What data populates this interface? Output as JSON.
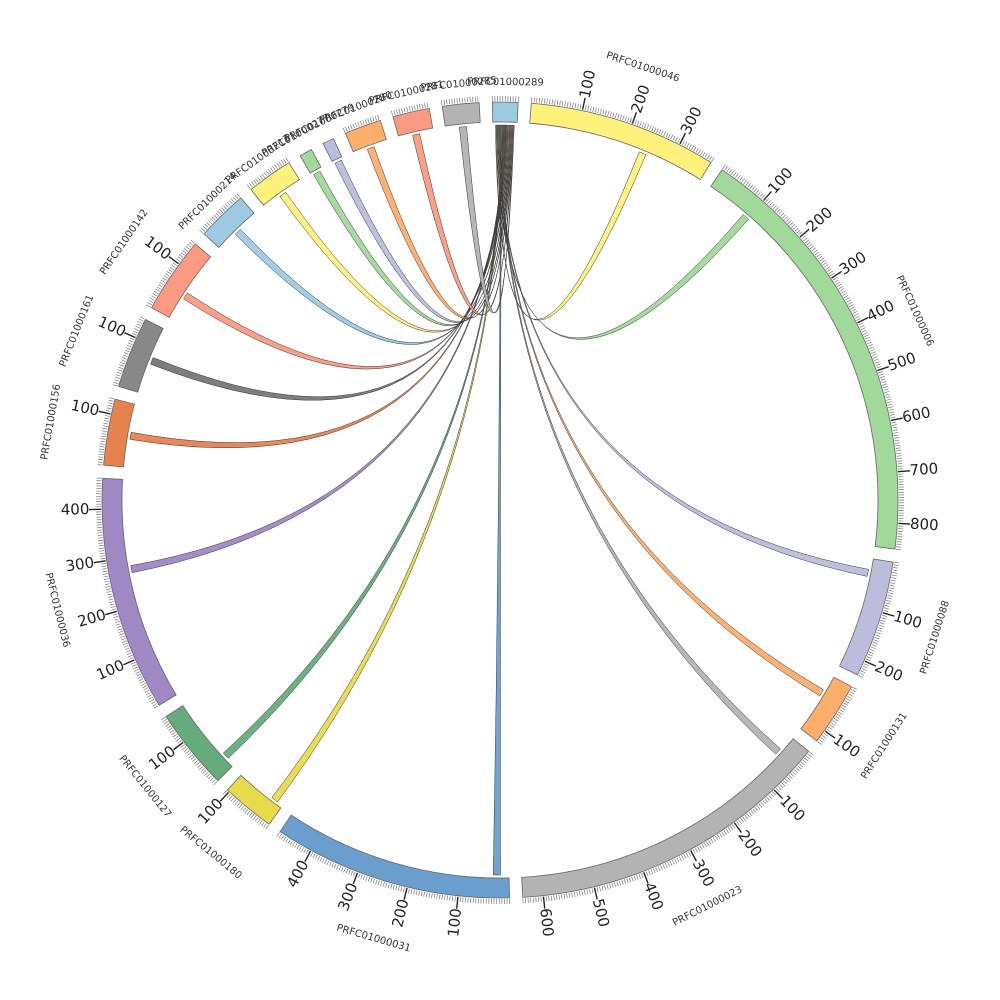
{
  "diagram": {
    "type": "circos",
    "hub": "PRFC01000289",
    "segments": [
      {
        "name": "PRFC01000289",
        "length": 50,
        "color": "#9ecae1",
        "ticks": []
      },
      {
        "name": "PRFC01000046",
        "length": 370,
        "color": "#fff27c",
        "ticks": [
          100,
          200,
          300
        ]
      },
      {
        "name": "PRFC01000006",
        "length": 850,
        "color": "#a1d99b",
        "ticks": [
          100,
          200,
          300,
          400,
          500,
          600,
          700,
          800
        ]
      },
      {
        "name": "PRFC01000088",
        "length": 230,
        "color": "#bcbddc",
        "ticks": [
          100,
          200
        ]
      },
      {
        "name": "PRFC01000131",
        "length": 125,
        "color": "#fdae6b",
        "ticks": [
          100
        ]
      },
      {
        "name": "PRFC01000023",
        "length": 640,
        "color": "#b3b3b3",
        "ticks": [
          100,
          200,
          300,
          400,
          500,
          600
        ]
      },
      {
        "name": "PRFC01000031",
        "length": 470,
        "color": "#6a9ecf",
        "ticks": [
          100,
          200,
          300,
          400
        ]
      },
      {
        "name": "PRFC01000180",
        "length": 105,
        "color": "#e7db4c",
        "ticks": [
          100
        ]
      },
      {
        "name": "PRFC01000127",
        "length": 160,
        "color": "#66ab7c",
        "ticks": [
          100
        ]
      },
      {
        "name": "PRFC01000036",
        "length": 460,
        "color": "#9f88c4",
        "ticks": [
          100,
          200,
          300,
          400
        ]
      },
      {
        "name": "PRFC01000156",
        "length": 130,
        "color": "#e6824e",
        "ticks": [
          100
        ]
      },
      {
        "name": "PRFC01000161",
        "length": 140,
        "color": "#888888",
        "ticks": [
          100
        ]
      },
      {
        "name": "PRFC01000142",
        "length": 150,
        "color": "#fb9a82",
        "ticks": [
          100
        ]
      },
      {
        "name": "PRFC01000214",
        "length": 100,
        "color": "#9ecae1",
        "ticks": []
      },
      {
        "name": "PRFC01000213",
        "length": 90,
        "color": "#fff27c",
        "ticks": []
      },
      {
        "name": "PRFC01000277",
        "length": 25,
        "color": "#a1d99b",
        "ticks": []
      },
      {
        "name": "PRFC01000279",
        "length": 22,
        "color": "#bcbddc",
        "ticks": []
      },
      {
        "name": "PRFC01000280",
        "length": 72,
        "color": "#fdae6b",
        "ticks": []
      },
      {
        "name": "PRFC01000281",
        "length": 72,
        "color": "#fb9a82",
        "ticks": []
      },
      {
        "name": "PRFC01000285",
        "length": 72,
        "color": "#b3b3b3",
        "ticks": []
      }
    ],
    "links": [
      {
        "target": "PRFC01000046",
        "pos": 240,
        "color": "#fff27c"
      },
      {
        "target": "PRFC01000006",
        "pos": 95,
        "color": "#a1d99b"
      },
      {
        "target": "PRFC01000088",
        "pos": 30,
        "color": "#bcbddc"
      },
      {
        "target": "PRFC01000131",
        "pos": 40,
        "color": "#fdae6b"
      },
      {
        "target": "PRFC01000023",
        "pos": 40,
        "color": "#b3b3b3"
      },
      {
        "target": "PRFC01000031",
        "pos": 25,
        "color": "#6a9ecf"
      },
      {
        "target": "PRFC01000180",
        "pos": 20,
        "color": "#e7db4c"
      },
      {
        "target": "PRFC01000127",
        "pos": 25,
        "color": "#66ab7c"
      },
      {
        "target": "PRFC01000036",
        "pos": 275,
        "color": "#9f88c4"
      },
      {
        "target": "PRFC01000156",
        "pos": 65,
        "color": "#e6824e"
      },
      {
        "target": "PRFC01000161",
        "pos": 70,
        "color": "#777777"
      },
      {
        "target": "PRFC01000142",
        "pos": 55,
        "color": "#fb9a82"
      },
      {
        "target": "PRFC01000214",
        "pos": 50,
        "color": "#9ecae1"
      },
      {
        "target": "PRFC01000213",
        "pos": 45,
        "color": "#fff27c"
      },
      {
        "target": "PRFC01000277",
        "pos": 12,
        "color": "#a1d99b"
      },
      {
        "target": "PRFC01000279",
        "pos": 11,
        "color": "#bcbddc"
      },
      {
        "target": "PRFC01000280",
        "pos": 36,
        "color": "#fdae6b"
      },
      {
        "target": "PRFC01000281",
        "pos": 36,
        "color": "#fb9a82"
      },
      {
        "target": "PRFC01000285",
        "pos": 36,
        "color": "#b3b3b3"
      }
    ]
  }
}
